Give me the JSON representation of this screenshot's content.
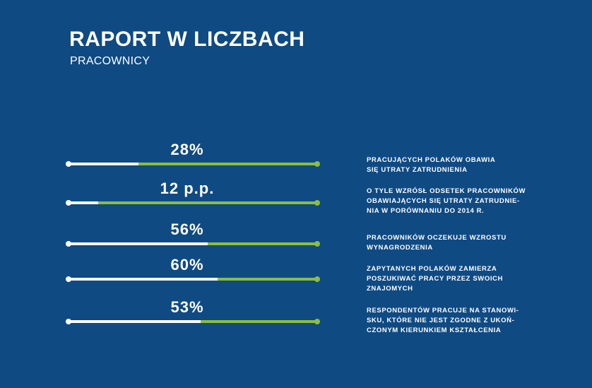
{
  "header": {
    "title": "RAPORT W LICZBACH",
    "subtitle": "PRACOWNICY"
  },
  "chart_data": {
    "type": "bar",
    "title": "",
    "items": [
      {
        "value": 28,
        "label": "28%",
        "description": "PRACUJĄCYCH POLAKÓW OBAWIA\nSIĘ UTRATY ZATRUDNIENIA"
      },
      {
        "value": 12,
        "label": "12 p.p.",
        "description": "O TYLE WZRÓSŁ ODSETEK PRACOWNIKÓW\nOBAWIAJĄCYCH SIĘ UTRATY ZATRUDNIE-\nNIA W PORÓWNANIU DO 2014 R."
      },
      {
        "value": 56,
        "label": "56%",
        "description": "PRACOWNIKÓW OCZEKUJE WZROSTU\nWYNAGRODZENIA"
      },
      {
        "value": 60,
        "label": "60%",
        "description": "ZAPYTANYCH POLAKÓW ZAMIERZA\nPOSZUKIWAĆ PRACY PRZEZ SWOICH\nZNAJOMYCH"
      },
      {
        "value": 53,
        "label": "53%",
        "description": "RESPONDENTÓW PRACUJE NA STANOWI-\nSKU, KTÓRE NIE JEST ZGODNE Z UKOŃ-\nCZONYM KIERUNKIEM KSZTAŁCENIA"
      }
    ],
    "ylim": [
      0,
      100
    ],
    "colors": {
      "filled": "#ffffff",
      "remaining": "#8cbf3f",
      "background": "#0f4a83"
    }
  }
}
